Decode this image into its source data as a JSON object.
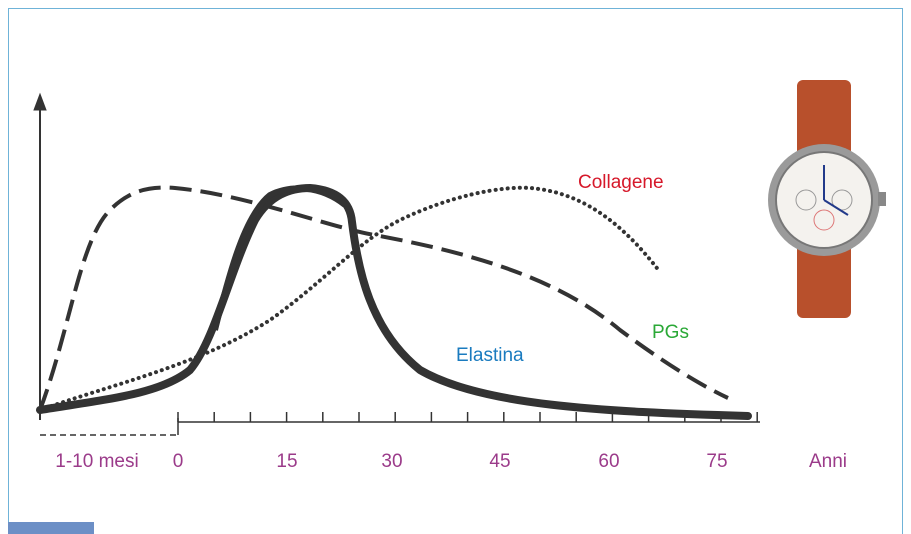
{
  "curve_labels": {
    "collagen": "Collagene",
    "pgs": "PGs",
    "elastin": "Elastina"
  },
  "x_axis_labels": [
    "1-10 mesi",
    "0",
    "15",
    "30",
    "45",
    "60",
    "75",
    "Anni"
  ]
}
